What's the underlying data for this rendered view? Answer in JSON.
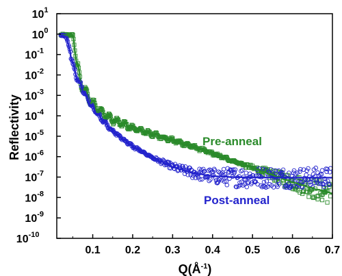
{
  "chart_data": {
    "type": "scatter",
    "ylabel": "Reflectivity",
    "xlabel_main": "Q(Å",
    "xlabel_sup": "-1",
    "xlabel_close": ")",
    "xlim": [
      0.01,
      0.7
    ],
    "ylim_exp": [
      -10,
      1
    ],
    "y_scale": "log",
    "x_ticks": [
      {
        "v": 0.1,
        "label": "0.1"
      },
      {
        "v": 0.2,
        "label": "0.2"
      },
      {
        "v": 0.3,
        "label": "0.3"
      },
      {
        "v": 0.4,
        "label": "0.4"
      },
      {
        "v": 0.5,
        "label": "0.5"
      },
      {
        "v": 0.6,
        "label": "0.6"
      },
      {
        "v": 0.7,
        "label": "0.7"
      }
    ],
    "y_ticks": [
      {
        "exp": 1,
        "label": "1"
      },
      {
        "exp": 0,
        "label": "0"
      },
      {
        "exp": -1,
        "label": "-1"
      },
      {
        "exp": -2,
        "label": "-2"
      },
      {
        "exp": -3,
        "label": "-3"
      },
      {
        "exp": -4,
        "label": "-4"
      },
      {
        "exp": -5,
        "label": "-5"
      },
      {
        "exp": -6,
        "label": "-6"
      },
      {
        "exp": -7,
        "label": "-7"
      },
      {
        "exp": -8,
        "label": "-8"
      },
      {
        "exp": -9,
        "label": "-9"
      },
      {
        "exp": -10,
        "label": "-10"
      }
    ],
    "y_tick_base": "10",
    "series": [
      {
        "name": "Pre-anneal",
        "color": "#2a8a2a",
        "marker": "square",
        "critical_edge_q": 0.052,
        "fit_q": [
          0.02,
          0.04,
          0.05,
          0.052,
          0.055,
          0.06,
          0.07,
          0.08,
          0.1,
          0.12,
          0.15,
          0.2,
          0.25,
          0.3,
          0.35,
          0.4,
          0.45,
          0.5,
          0.55,
          0.6,
          0.65,
          0.7
        ],
        "fit_log": [
          -0.05,
          -0.05,
          -0.05,
          -0.2,
          -0.8,
          -1.5,
          -2.3,
          -2.8,
          -3.4,
          -3.8,
          -4.2,
          -4.6,
          -4.9,
          -5.2,
          -5.5,
          -5.85,
          -6.2,
          -6.55,
          -6.9,
          -7.25,
          -7.55,
          -7.8
        ],
        "fringe_period": 0.0195,
        "noise_floor_log": -7.7
      },
      {
        "name": "Post-anneal",
        "color": "#2222cc",
        "marker": "circle",
        "critical_edge_q": 0.035,
        "fit_q": [
          0.02,
          0.03,
          0.035,
          0.04,
          0.045,
          0.05,
          0.06,
          0.08,
          0.1,
          0.12,
          0.15,
          0.2,
          0.25,
          0.3,
          0.35,
          0.4,
          0.45,
          0.5,
          0.6,
          0.7
        ],
        "fit_log": [
          -0.05,
          -0.1,
          -0.2,
          -0.6,
          -1.0,
          -1.5,
          -2.1,
          -2.9,
          -3.6,
          -4.1,
          -4.75,
          -5.5,
          -6.05,
          -6.5,
          -6.8,
          -6.95,
          -7.0,
          -7.02,
          -7.03,
          -7.03
        ],
        "fringe_period": 0.016,
        "noise_floor_log": -7.05
      }
    ]
  }
}
